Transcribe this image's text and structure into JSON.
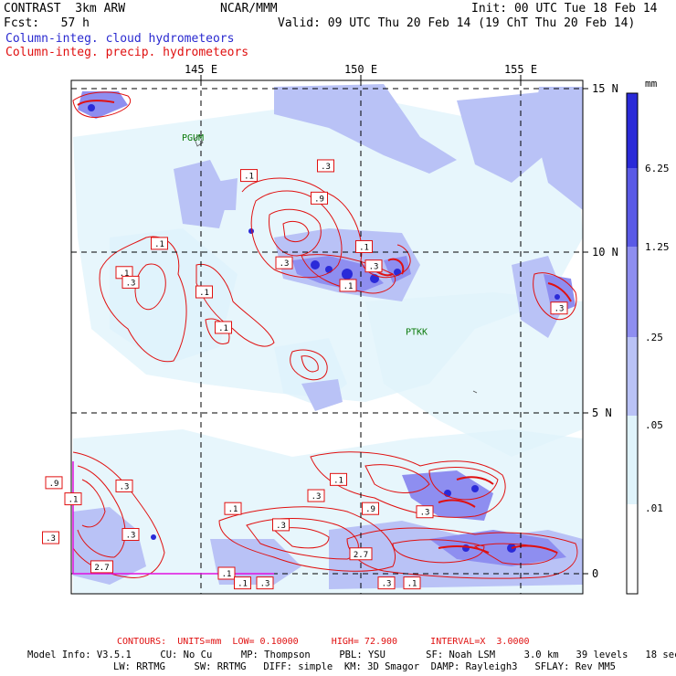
{
  "header": {
    "model": "CONTRAST  3km ARW",
    "org": "NCAR/MMM",
    "init": "Init: 00 UTC Tue 18 Feb 14",
    "fcst": "Fcst:   57 h",
    "valid": "Valid: 09 UTC Thu 20 Feb 14 (19 ChT Thu 20 Feb 14)",
    "field_cloud": "Column-integ. cloud hydrometeors",
    "field_precip": "Column-integ. precip. hydrometeors"
  },
  "map": {
    "lon_labels": [
      "145 E",
      "150 E",
      "155 E"
    ],
    "lat_labels": [
      "15 N",
      "10 N",
      "5 N",
      "0"
    ],
    "stations": [
      {
        "name": "PGUM",
        "lon": 144.8,
        "lat": 13.5
      },
      {
        "name": "PTKK",
        "lon": 151.8,
        "lat": 7.5
      }
    ],
    "contour_labels": [
      {
        "text": ".1",
        "lon": 146.5,
        "lat": 12.3
      },
      {
        "text": ".3",
        "lon": 148.9,
        "lat": 12.6
      },
      {
        "text": ".9",
        "lon": 148.7,
        "lat": 11.6
      },
      {
        "text": ".1",
        "lon": 143.7,
        "lat": 10.2
      },
      {
        "text": ".1",
        "lon": 142.6,
        "lat": 9.3
      },
      {
        "text": ".3",
        "lon": 142.8,
        "lat": 9.0
      },
      {
        "text": ".3",
        "lon": 147.6,
        "lat": 9.6
      },
      {
        "text": ".1",
        "lon": 150.1,
        "lat": 10.1
      },
      {
        "text": ".3",
        "lon": 150.4,
        "lat": 9.5
      },
      {
        "text": ".1",
        "lon": 149.6,
        "lat": 8.9
      },
      {
        "text": ".1",
        "lon": 145.1,
        "lat": 8.7
      },
      {
        "text": ".1",
        "lon": 145.7,
        "lat": 7.6
      },
      {
        "text": ".3",
        "lon": 156.2,
        "lat": 8.2
      },
      {
        "text": ".9",
        "lon": 140.4,
        "lat": 2.8
      },
      {
        "text": ".3",
        "lon": 142.6,
        "lat": 2.7
      },
      {
        "text": ".1",
        "lon": 141.0,
        "lat": 2.3
      },
      {
        "text": ".1",
        "lon": 146.0,
        "lat": 2.0
      },
      {
        "text": ".3",
        "lon": 147.5,
        "lat": 1.5
      },
      {
        "text": ".1",
        "lon": 149.3,
        "lat": 2.9
      },
      {
        "text": ".3",
        "lon": 148.6,
        "lat": 2.4
      },
      {
        "text": ".9",
        "lon": 150.3,
        "lat": 2.0
      },
      {
        "text": ".3",
        "lon": 142.8,
        "lat": 1.2
      },
      {
        "text": ".3",
        "lon": 140.3,
        "lat": 1.1
      },
      {
        "text": "2.7",
        "lon": 141.9,
        "lat": 0.2
      },
      {
        "text": "2.7",
        "lon": 150.0,
        "lat": 0.6
      },
      {
        "text": ".1",
        "lon": 145.8,
        "lat": 0.0
      },
      {
        "text": ".1",
        "lon": 146.3,
        "lat": -0.3
      },
      {
        "text": ".3",
        "lon": 147.0,
        "lat": -0.3
      },
      {
        "text": ".3",
        "lon": 150.8,
        "lat": -0.3
      },
      {
        "text": ".1",
        "lon": 151.6,
        "lat": -0.3
      },
      {
        "text": ".3",
        "lon": 152.0,
        "lat": 1.9
      }
    ]
  },
  "legend": {
    "unit": "mm",
    "levels": [
      "6.25",
      "1.25",
      ".25",
      ".05",
      ".01"
    ],
    "colors": [
      "#2a2ad8",
      "#5a5ae6",
      "#8e8ef0",
      "#b9c2f6",
      "#dff3fb",
      "#ffffff"
    ]
  },
  "footer": {
    "contours": "CONTOURS:  UNITS=mm  LOW= 0.10000      HIGH= 72.900      INTERVAL=X  3.0000",
    "model_info": "Model Info: V3.5.1     CU: No Cu     MP: Thompson     PBL: YSU       SF: Noah LSM     3.0 km   39 levels   18 sec",
    "model_info2": "LW: RRTMG     SW: RRTMG   DIFF: simple  KM: 3D Smagor  DAMP: Rayleigh3   SFLAY: Rev MM5"
  }
}
